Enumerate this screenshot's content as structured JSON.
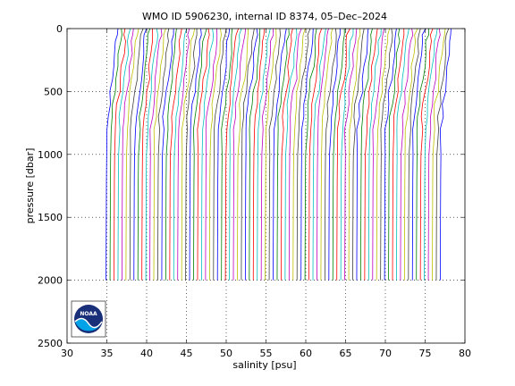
{
  "chart_data": {
    "type": "line",
    "title": "WMO ID 5906230, internal ID 8374, 05–Dec–2024",
    "xlabel": "salinity [psu]",
    "ylabel": "pressure [dbar]",
    "xlim": [
      30,
      80
    ],
    "ylim": [
      0,
      2500
    ],
    "y_reversed": true,
    "xticks": [
      30,
      35,
      40,
      45,
      50,
      55,
      60,
      65,
      70,
      75,
      80
    ],
    "yticks": [
      0,
      500,
      1000,
      1500,
      2000,
      2500
    ],
    "grid": true,
    "grid_style": "dotted",
    "profiles": {
      "count": 85,
      "first_offset_x": 34.9,
      "offset_step_x": 0.5,
      "max_pressure": 2000,
      "description_of_shape_note": null,
      "colors": [
        "#0000ff",
        "#008000",
        "#ff0000",
        "#00bfbf",
        "#bf00bf",
        "#bfbf00",
        "#404040"
      ]
    },
    "profile_shape": {
      "pressure": [
        0,
        50,
        100,
        200,
        300,
        400,
        500,
        600,
        700,
        800,
        1000,
        1200,
        1500,
        1800,
        2000
      ],
      "salinity_offset": [
        1.5,
        1.4,
        1.3,
        1.15,
        1.0,
        0.82,
        0.62,
        0.42,
        0.25,
        0.15,
        0.08,
        0.05,
        0.03,
        0.01,
        0.0
      ]
    }
  },
  "logo": {
    "text": "NOAA"
  }
}
